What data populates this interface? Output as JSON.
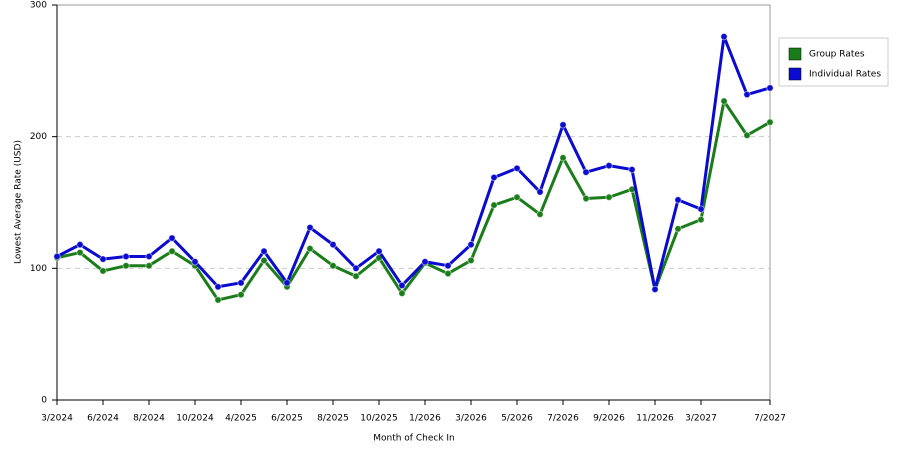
{
  "chart_data": {
    "type": "line",
    "xlabel": "Month of Check In",
    "ylabel": "Lowest Average Rate (USD)",
    "categories": [
      "3/2024",
      null,
      "6/2024",
      null,
      "8/2024",
      null,
      "10/2024",
      null,
      "4/2025",
      null,
      "6/2025",
      null,
      "8/2025",
      null,
      "10/2025",
      null,
      "1/2026",
      null,
      "3/2026",
      null,
      "5/2026",
      null,
      "7/2026",
      null,
      "9/2026",
      null,
      "11/2026",
      null,
      "3/2027",
      null,
      null,
      "7/2027"
    ],
    "series": [
      {
        "name": "Group Rates",
        "color": "#1a7d1a",
        "values": [
          108,
          112,
          98,
          102,
          102,
          113,
          102,
          76,
          80,
          106,
          86,
          115,
          102,
          94,
          108,
          81,
          104,
          96,
          106,
          148,
          154,
          141,
          184,
          153,
          154,
          160,
          84,
          130,
          137,
          227,
          201,
          211
        ]
      },
      {
        "name": "Individual Rates",
        "color": "#0a0ad0",
        "values": [
          109,
          118,
          107,
          109,
          109,
          123,
          105,
          86,
          89,
          113,
          89,
          131,
          118,
          100,
          113,
          87,
          105,
          102,
          118,
          169,
          176,
          158,
          209,
          173,
          178,
          175,
          84,
          152,
          145,
          276,
          232,
          237
        ]
      }
    ],
    "ylim": [
      0,
      300
    ],
    "yticks": [
      0,
      100,
      200,
      300
    ],
    "grid": true,
    "legend": "top-right"
  }
}
